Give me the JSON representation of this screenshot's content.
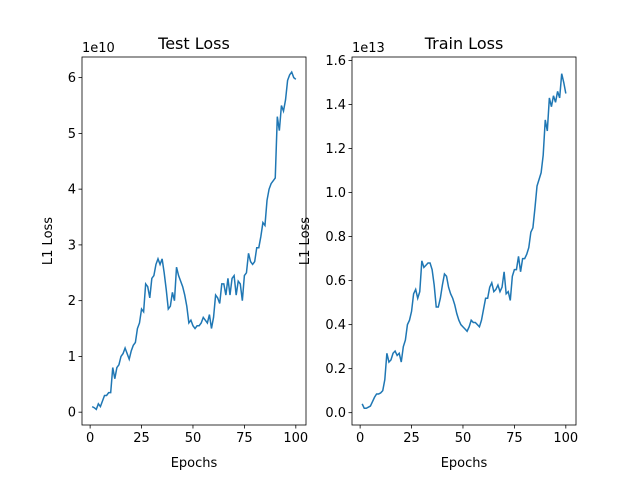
{
  "chart_data": [
    {
      "type": "line",
      "title": "Test Loss",
      "x_label": "Epochs",
      "y_label": "L1 Loss",
      "offset_label": "1e10",
      "color": "#1f77b4",
      "x": [
        1,
        2,
        3,
        4,
        5,
        6,
        7,
        8,
        9,
        10,
        11,
        12,
        13,
        14,
        15,
        16,
        17,
        18,
        19,
        20,
        21,
        22,
        23,
        24,
        25,
        26,
        27,
        28,
        29,
        30,
        31,
        32,
        33,
        34,
        35,
        36,
        37,
        38,
        39,
        40,
        41,
        42,
        43,
        44,
        45,
        46,
        47,
        48,
        49,
        50,
        51,
        52,
        53,
        54,
        55,
        56,
        57,
        58,
        59,
        60,
        61,
        62,
        63,
        64,
        65,
        66,
        67,
        68,
        69,
        70,
        71,
        72,
        73,
        74,
        75,
        76,
        77,
        78,
        79,
        80,
        81,
        82,
        83,
        84,
        85,
        86,
        87,
        88,
        89,
        90,
        91,
        92,
        93,
        94,
        95,
        96,
        97,
        98,
        99,
        100
      ],
      "values": [
        0.1,
        0.08,
        0.05,
        0.15,
        0.1,
        0.2,
        0.3,
        0.3,
        0.35,
        0.35,
        0.8,
        0.6,
        0.8,
        0.85,
        1.0,
        1.05,
        1.15,
        1.05,
        0.95,
        1.1,
        1.2,
        1.25,
        1.5,
        1.6,
        1.85,
        1.8,
        2.3,
        2.25,
        2.05,
        2.4,
        2.45,
        2.65,
        2.75,
        2.65,
        2.75,
        2.5,
        2.2,
        1.85,
        1.9,
        2.15,
        2.0,
        2.6,
        2.45,
        2.35,
        2.25,
        2.1,
        1.9,
        1.6,
        1.65,
        1.55,
        1.5,
        1.55,
        1.55,
        1.6,
        1.7,
        1.65,
        1.6,
        1.75,
        1.5,
        1.7,
        2.1,
        2.05,
        1.95,
        2.3,
        2.3,
        2.1,
        2.4,
        2.1,
        2.4,
        2.45,
        2.1,
        2.35,
        2.3,
        2.0,
        2.45,
        2.5,
        2.85,
        2.7,
        2.65,
        2.7,
        2.95,
        2.95,
        3.15,
        3.4,
        3.35,
        3.8,
        4.0,
        4.1,
        4.15,
        4.2,
        5.3,
        5.05,
        5.5,
        5.4,
        5.6,
        5.95,
        6.05,
        6.1,
        6.0,
        5.97
      ],
      "xlim": [
        -3.95,
        104.95
      ],
      "xticks": [
        0,
        25,
        50,
        75,
        100
      ],
      "ylim": [
        -0.23,
        6.37
      ],
      "yticks": [
        0,
        1,
        2,
        3,
        4,
        5,
        6
      ]
    },
    {
      "type": "line",
      "title": "Train Loss",
      "x_label": "Epochs",
      "y_label": "L1 Loss",
      "offset_label": "1e13",
      "color": "#1f77b4",
      "x": [
        1,
        2,
        3,
        4,
        5,
        6,
        7,
        8,
        9,
        10,
        11,
        12,
        13,
        14,
        15,
        16,
        17,
        18,
        19,
        20,
        21,
        22,
        23,
        24,
        25,
        26,
        27,
        28,
        29,
        30,
        31,
        32,
        33,
        34,
        35,
        36,
        37,
        38,
        39,
        40,
        41,
        42,
        43,
        44,
        45,
        46,
        47,
        48,
        49,
        50,
        51,
        52,
        53,
        54,
        55,
        56,
        57,
        58,
        59,
        60,
        61,
        62,
        63,
        64,
        65,
        66,
        67,
        68,
        69,
        70,
        71,
        72,
        73,
        74,
        75,
        76,
        77,
        78,
        79,
        80,
        81,
        82,
        83,
        84,
        85,
        86,
        87,
        88,
        89,
        90,
        91,
        92,
        93,
        94,
        95,
        96,
        97,
        98,
        99,
        100
      ],
      "values": [
        0.04,
        0.02,
        0.02,
        0.025,
        0.03,
        0.05,
        0.07,
        0.085,
        0.085,
        0.09,
        0.1,
        0.15,
        0.27,
        0.23,
        0.24,
        0.27,
        0.28,
        0.26,
        0.27,
        0.23,
        0.3,
        0.33,
        0.4,
        0.42,
        0.46,
        0.54,
        0.56,
        0.52,
        0.55,
        0.69,
        0.66,
        0.67,
        0.68,
        0.68,
        0.65,
        0.58,
        0.48,
        0.48,
        0.52,
        0.58,
        0.63,
        0.62,
        0.57,
        0.54,
        0.52,
        0.49,
        0.45,
        0.42,
        0.4,
        0.39,
        0.38,
        0.37,
        0.39,
        0.42,
        0.41,
        0.41,
        0.4,
        0.39,
        0.42,
        0.47,
        0.52,
        0.52,
        0.57,
        0.59,
        0.55,
        0.56,
        0.58,
        0.55,
        0.57,
        0.64,
        0.54,
        0.55,
        0.51,
        0.62,
        0.65,
        0.65,
        0.71,
        0.64,
        0.7,
        0.7,
        0.72,
        0.75,
        0.82,
        0.84,
        0.93,
        1.03,
        1.06,
        1.09,
        1.17,
        1.33,
        1.28,
        1.43,
        1.39,
        1.44,
        1.41,
        1.46,
        1.43,
        1.54,
        1.5,
        1.45
      ],
      "xlim": [
        -3.95,
        104.95
      ],
      "xticks": [
        0,
        25,
        50,
        75,
        100
      ],
      "ylim": [
        -0.056,
        1.616
      ],
      "yticks": [
        {
          "value": 0,
          "label": "0.0"
        },
        0.2,
        0.4,
        0.6,
        0.8,
        {
          "value": 1,
          "label": "1.0"
        },
        1.2,
        1.4,
        1.6
      ]
    }
  ]
}
